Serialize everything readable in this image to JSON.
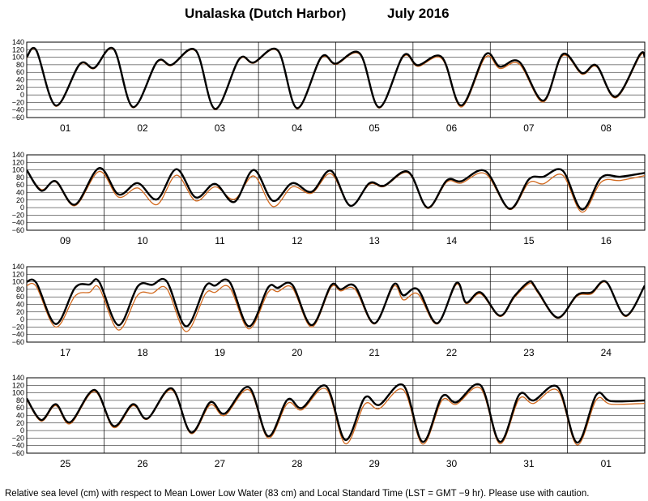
{
  "title": {
    "location": "Unalaska (Dutch Harbor)",
    "period": "July   2016"
  },
  "footer": "Relative sea level (cm) with respect to Mean Lower Low Water (83 cm) and Local Standard Time (LST = GMT −9 hr). Please use with caution.",
  "colors": {
    "observed": "#000000",
    "predicted": "#d2691e",
    "grid": "#000000"
  },
  "chart_data": {
    "type": "line",
    "ylim": [
      -60,
      140
    ],
    "yticks": [
      140,
      120,
      100,
      80,
      60,
      40,
      20,
      0,
      -20,
      -40,
      -60
    ],
    "series": [
      {
        "name": "observed",
        "style": "thick black"
      },
      {
        "name": "predicted",
        "style": "thin orange"
      }
    ],
    "panels": [
      {
        "days": [
          "01",
          "02",
          "03",
          "04",
          "05",
          "06",
          "07",
          "08"
        ],
        "observed": [
          [
            0,
            100
          ],
          [
            2,
            118
          ],
          [
            6,
            -28
          ],
          [
            11,
            82
          ],
          [
            14,
            72
          ],
          [
            18,
            122
          ],
          [
            22,
            -32
          ],
          [
            27,
            88
          ],
          [
            30,
            80
          ],
          [
            35,
            118
          ],
          [
            39,
            -37
          ],
          [
            44,
            95
          ],
          [
            47,
            86
          ],
          [
            52,
            118
          ],
          [
            56,
            -35
          ],
          [
            61,
            100
          ],
          [
            64,
            83
          ],
          [
            69,
            110
          ],
          [
            73,
            -33
          ],
          [
            78,
            104
          ],
          [
            81,
            79
          ],
          [
            86,
            100
          ],
          [
            90,
            -28
          ],
          [
            95,
            107
          ],
          [
            98,
            75
          ],
          [
            102,
            88
          ],
          [
            107,
            -15
          ],
          [
            111,
            108
          ],
          [
            115,
            58
          ],
          [
            118,
            78
          ],
          [
            122,
            -5
          ],
          [
            127,
            107
          ],
          [
            128,
            100
          ]
        ],
        "predicted": [
          [
            0,
            98
          ],
          [
            2,
            116
          ],
          [
            6,
            -30
          ],
          [
            11,
            80
          ],
          [
            14,
            70
          ],
          [
            18,
            120
          ],
          [
            22,
            -34
          ],
          [
            27,
            86
          ],
          [
            30,
            78
          ],
          [
            35,
            116
          ],
          [
            39,
            -39
          ],
          [
            44,
            93
          ],
          [
            47,
            84
          ],
          [
            52,
            116
          ],
          [
            56,
            -37
          ],
          [
            61,
            97
          ],
          [
            64,
            81
          ],
          [
            69,
            107
          ],
          [
            73,
            -35
          ],
          [
            78,
            101
          ],
          [
            81,
            76
          ],
          [
            86,
            96
          ],
          [
            90,
            -32
          ],
          [
            95,
            100
          ],
          [
            98,
            70
          ],
          [
            102,
            82
          ],
          [
            107,
            -19
          ],
          [
            111,
            104
          ],
          [
            115,
            55
          ],
          [
            118,
            75
          ],
          [
            122,
            -8
          ],
          [
            127,
            103
          ],
          [
            128,
            97
          ]
        ]
      },
      {
        "days": [
          "09",
          "10",
          "11",
          "12",
          "13",
          "14",
          "15",
          "16"
        ],
        "observed": [
          [
            0,
            100
          ],
          [
            3,
            45
          ],
          [
            6,
            70
          ],
          [
            10,
            8
          ],
          [
            15,
            105
          ],
          [
            19,
            35
          ],
          [
            23,
            65
          ],
          [
            27,
            22
          ],
          [
            31,
            102
          ],
          [
            35,
            27
          ],
          [
            39,
            63
          ],
          [
            43,
            15
          ],
          [
            47,
            100
          ],
          [
            51,
            18
          ],
          [
            55,
            65
          ],
          [
            59,
            42
          ],
          [
            63,
            98
          ],
          [
            67,
            5
          ],
          [
            71,
            65
          ],
          [
            74,
            58
          ],
          [
            79,
            95
          ],
          [
            83,
            0
          ],
          [
            87,
            72
          ],
          [
            90,
            70
          ],
          [
            95,
            97
          ],
          [
            100,
            -3
          ],
          [
            104,
            75
          ],
          [
            107,
            82
          ],
          [
            111,
            98
          ],
          [
            115,
            -5
          ],
          [
            119,
            80
          ],
          [
            123,
            82
          ],
          [
            128,
            92
          ]
        ],
        "predicted": [
          [
            0,
            98
          ],
          [
            3,
            48
          ],
          [
            6,
            68
          ],
          [
            10,
            5
          ],
          [
            15,
            96
          ],
          [
            19,
            28
          ],
          [
            23,
            52
          ],
          [
            27,
            8
          ],
          [
            31,
            86
          ],
          [
            35,
            18
          ],
          [
            39,
            55
          ],
          [
            43,
            22
          ],
          [
            47,
            84
          ],
          [
            51,
            3
          ],
          [
            55,
            55
          ],
          [
            59,
            38
          ],
          [
            63,
            90
          ],
          [
            67,
            5
          ],
          [
            71,
            62
          ],
          [
            74,
            56
          ],
          [
            79,
            92
          ],
          [
            83,
            -2
          ],
          [
            87,
            68
          ],
          [
            90,
            65
          ],
          [
            95,
            90
          ],
          [
            100,
            -5
          ],
          [
            104,
            66
          ],
          [
            107,
            63
          ],
          [
            111,
            86
          ],
          [
            115,
            -12
          ],
          [
            119,
            68
          ],
          [
            123,
            72
          ],
          [
            128,
            85
          ]
        ]
      },
      {
        "days": [
          "17",
          "18",
          "19",
          "20",
          "21",
          "22",
          "23",
          "24"
        ],
        "observed": [
          [
            0,
            100
          ],
          [
            2,
            97
          ],
          [
            6,
            -12
          ],
          [
            10,
            84
          ],
          [
            13,
            93
          ],
          [
            15,
            100
          ],
          [
            19,
            -15
          ],
          [
            23,
            88
          ],
          [
            26,
            92
          ],
          [
            29,
            101
          ],
          [
            33,
            -18
          ],
          [
            37,
            88
          ],
          [
            39,
            90
          ],
          [
            42,
            100
          ],
          [
            46,
            -18
          ],
          [
            50,
            85
          ],
          [
            52,
            84
          ],
          [
            55,
            92
          ],
          [
            59,
            -15
          ],
          [
            63,
            90
          ],
          [
            65,
            80
          ],
          [
            68,
            88
          ],
          [
            72,
            -10
          ],
          [
            76,
            93
          ],
          [
            78,
            64
          ],
          [
            81,
            80
          ],
          [
            85,
            -10
          ],
          [
            89,
            97
          ],
          [
            91,
            45
          ],
          [
            94,
            72
          ],
          [
            98,
            10
          ],
          [
            101,
            62
          ],
          [
            104,
            100
          ],
          [
            105,
            92
          ],
          [
            106,
            72
          ],
          [
            110,
            5
          ],
          [
            114,
            65
          ],
          [
            117,
            72
          ],
          [
            120,
            100
          ],
          [
            124,
            10
          ],
          [
            128,
            90
          ]
        ],
        "predicted": [
          [
            0,
            90
          ],
          [
            2,
            87
          ],
          [
            6,
            -20
          ],
          [
            10,
            62
          ],
          [
            13,
            72
          ],
          [
            15,
            84
          ],
          [
            19,
            -28
          ],
          [
            23,
            65
          ],
          [
            26,
            70
          ],
          [
            29,
            82
          ],
          [
            33,
            -32
          ],
          [
            37,
            68
          ],
          [
            39,
            72
          ],
          [
            42,
            85
          ],
          [
            46,
            -25
          ],
          [
            50,
            72
          ],
          [
            52,
            74
          ],
          [
            55,
            84
          ],
          [
            59,
            -20
          ],
          [
            63,
            85
          ],
          [
            65,
            76
          ],
          [
            68,
            80
          ],
          [
            72,
            -12
          ],
          [
            76,
            88
          ],
          [
            78,
            52
          ],
          [
            81,
            68
          ],
          [
            85,
            -12
          ],
          [
            89,
            93
          ],
          [
            91,
            42
          ],
          [
            94,
            68
          ],
          [
            98,
            8
          ],
          [
            101,
            58
          ],
          [
            104,
            95
          ],
          [
            105,
            88
          ],
          [
            106,
            68
          ],
          [
            110,
            3
          ],
          [
            114,
            62
          ],
          [
            117,
            68
          ],
          [
            120,
            98
          ],
          [
            124,
            8
          ],
          [
            128,
            88
          ]
        ]
      },
      {
        "days": [
          "25",
          "26",
          "27",
          "28",
          "29",
          "30",
          "31",
          "01"
        ],
        "observed": [
          [
            0,
            85
          ],
          [
            3,
            28
          ],
          [
            6,
            70
          ],
          [
            9,
            22
          ],
          [
            14,
            108
          ],
          [
            18,
            12
          ],
          [
            22,
            70
          ],
          [
            25,
            32
          ],
          [
            30,
            112
          ],
          [
            34,
            -5
          ],
          [
            38,
            75
          ],
          [
            41,
            45
          ],
          [
            46,
            115
          ],
          [
            50,
            -15
          ],
          [
            54,
            82
          ],
          [
            57,
            60
          ],
          [
            62,
            118
          ],
          [
            66,
            -25
          ],
          [
            70,
            87
          ],
          [
            73,
            68
          ],
          [
            78,
            120
          ],
          [
            82,
            -30
          ],
          [
            86,
            90
          ],
          [
            89,
            75
          ],
          [
            94,
            120
          ],
          [
            98,
            -30
          ],
          [
            102,
            95
          ],
          [
            105,
            80
          ],
          [
            110,
            115
          ],
          [
            114,
            -32
          ],
          [
            118,
            95
          ],
          [
            121,
            78
          ],
          [
            128,
            80
          ]
        ],
        "predicted": [
          [
            0,
            82
          ],
          [
            3,
            25
          ],
          [
            6,
            66
          ],
          [
            9,
            18
          ],
          [
            14,
            104
          ],
          [
            18,
            8
          ],
          [
            22,
            66
          ],
          [
            25,
            30
          ],
          [
            30,
            108
          ],
          [
            34,
            -8
          ],
          [
            38,
            68
          ],
          [
            41,
            40
          ],
          [
            46,
            108
          ],
          [
            50,
            -20
          ],
          [
            54,
            72
          ],
          [
            57,
            55
          ],
          [
            62,
            110
          ],
          [
            66,
            -35
          ],
          [
            70,
            70
          ],
          [
            73,
            58
          ],
          [
            78,
            108
          ],
          [
            82,
            -36
          ],
          [
            86,
            80
          ],
          [
            89,
            70
          ],
          [
            94,
            112
          ],
          [
            98,
            -35
          ],
          [
            102,
            84
          ],
          [
            105,
            72
          ],
          [
            110,
            106
          ],
          [
            114,
            -38
          ],
          [
            118,
            82
          ],
          [
            121,
            70
          ],
          [
            128,
            72
          ]
        ]
      }
    ]
  }
}
